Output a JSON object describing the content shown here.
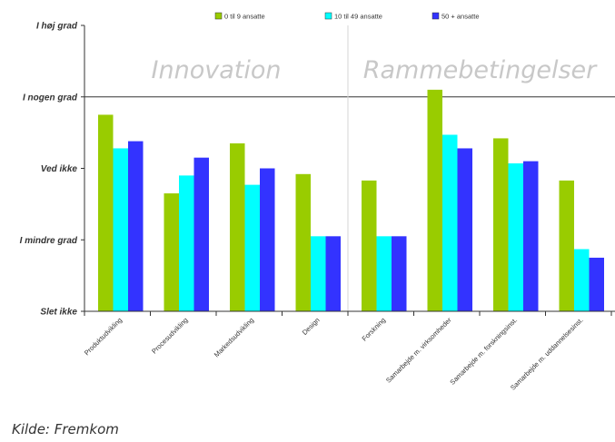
{
  "chart_data": {
    "type": "bar",
    "categories": [
      "Produktudvikling",
      "Procesudvikling",
      "Markedsudvikling",
      "Design",
      "Forskning",
      "Samarbejde m. virksomheder",
      "Samarbejde m. forskningsinst.",
      "Samarbejde m. uddannelsesinst."
    ],
    "y_tick_labels": [
      "Slet ikke",
      "I mindre grad",
      "Ved ikke",
      "I nogen grad",
      "I høj grad"
    ],
    "ylim": [
      0,
      4
    ],
    "grid": false,
    "legend_position": "top",
    "series": [
      {
        "name": "0 til 9 ansatte",
        "color": "#99cc00",
        "values": [
          2.75,
          1.65,
          2.35,
          1.92,
          1.83,
          3.1,
          2.42,
          1.83
        ]
      },
      {
        "name": "10 til 49 ansatte",
        "color": "#00ffff",
        "values": [
          2.28,
          1.9,
          1.77,
          1.05,
          1.05,
          2.47,
          2.07,
          0.87
        ]
      },
      {
        "name": "50 + ansatte",
        "color": "#3333ff",
        "values": [
          2.38,
          2.15,
          2.0,
          1.05,
          1.05,
          2.28,
          2.1,
          0.75
        ]
      }
    ],
    "sections": [
      {
        "label": "Innovation",
        "first": 0,
        "last": 3
      },
      {
        "label": "Rammebetingelser",
        "first": 4,
        "last": 7
      }
    ],
    "reference_line_at": 3,
    "source": "Kilde: Fremkom"
  }
}
